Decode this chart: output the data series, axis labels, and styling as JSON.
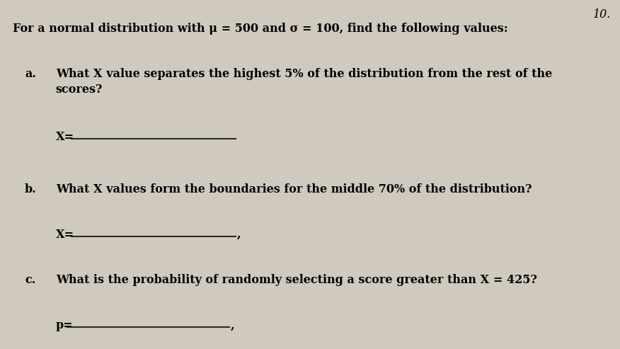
{
  "background_color": "#cfc9be",
  "title_text": "For a normal distribution with μ = 500 and σ = 100, find the following values:",
  "items": [
    {
      "label": "a.",
      "question": "What X value separates the highest 5% of the distribution from the rest of the\nscores?",
      "answer_prefix": "X="
    },
    {
      "label": "b.",
      "question": "What X values form the boundaries for the middle 70% of the distribution?",
      "answer_prefix": "X="
    },
    {
      "label": "c.",
      "question": "What is the probability of randomly selecting a score greater than X = 425?",
      "answer_prefix": "p="
    }
  ],
  "corner_text": "10.",
  "font_size": 11.5,
  "label_font_size": 11.5,
  "title_font_size": 11.5
}
